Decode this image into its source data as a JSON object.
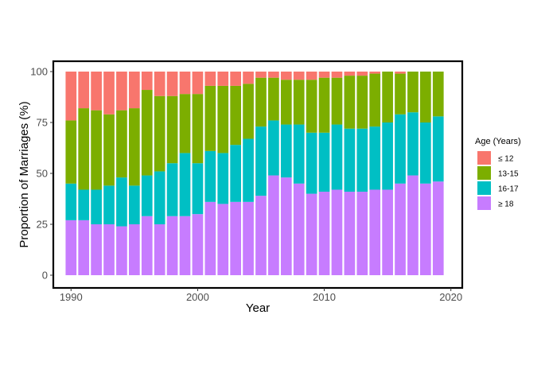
{
  "chart_data": {
    "type": "bar",
    "stacked": true,
    "title": "",
    "xlabel": "Year",
    "ylabel": "Proportion of Marriages (%)",
    "xlim": [
      1988.6,
      2020.9
    ],
    "ylim": [
      0,
      100
    ],
    "x_ticks": [
      1990,
      2000,
      2010,
      2020
    ],
    "y_ticks": [
      0,
      25,
      50,
      75,
      100
    ],
    "grid": false,
    "legend": {
      "title": "Age (Years)",
      "position": "right"
    },
    "x": [
      1990,
      1991,
      1992,
      1993,
      1994,
      1995,
      1996,
      1997,
      1998,
      1999,
      2000,
      2001,
      2002,
      2003,
      2004,
      2005,
      2006,
      2007,
      2008,
      2009,
      2010,
      2011,
      2012,
      2013,
      2014,
      2015,
      2016,
      2017,
      2018,
      2019
    ],
    "series": [
      {
        "name": "≥ 18",
        "color": "#C77CFF",
        "values": [
          27,
          27,
          25,
          25,
          24,
          25,
          29,
          25,
          29,
          29,
          30,
          36,
          35,
          36,
          36,
          39,
          49,
          48,
          45,
          40,
          41,
          42,
          41,
          41,
          42,
          42,
          45,
          49,
          45,
          46
        ]
      },
      {
        "name": "16-17",
        "color": "#00BFC4",
        "values": [
          18,
          15,
          17,
          19,
          24,
          19,
          20,
          26,
          26,
          31,
          25,
          25,
          25,
          28,
          31,
          34,
          27,
          26,
          29,
          30,
          29,
          32,
          31,
          31,
          31,
          33,
          34,
          31,
          30,
          32
        ]
      },
      {
        "name": "13-15",
        "color": "#7CAE00",
        "values": [
          31,
          40,
          39,
          35,
          33,
          38,
          42,
          37,
          33,
          29,
          34,
          32,
          33,
          29,
          27,
          24,
          21,
          22,
          22,
          26,
          27,
          23,
          26,
          26,
          26,
          25,
          20,
          20,
          25,
          22
        ]
      },
      {
        "name": "≤ 12",
        "color": "#F8766D",
        "values": [
          24,
          18,
          19,
          21,
          19,
          18,
          9,
          12,
          12,
          11,
          11,
          7,
          7,
          7,
          6,
          3,
          3,
          4,
          4,
          4,
          3,
          3,
          2,
          2,
          1,
          0,
          1,
          0,
          0,
          0
        ]
      }
    ],
    "legend_order": [
      "≤ 12",
      "13-15",
      "16-17",
      "≥ 18"
    ]
  }
}
